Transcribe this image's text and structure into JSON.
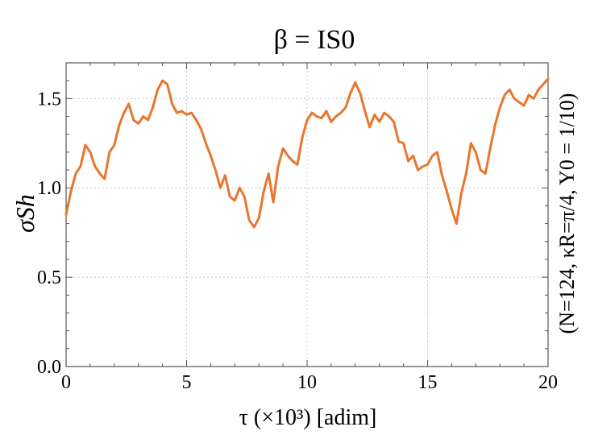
{
  "chart_data": {
    "type": "line",
    "title": "β = IS0",
    "xlabel": "τ (×10³) [adim]",
    "ylabel": "σSh",
    "side_note": "(N=124, κR=π/4, Υ0 = 1/10)",
    "xlim": [
      0,
      20
    ],
    "ylim": [
      0,
      1.7
    ],
    "x_ticks": [
      0,
      5,
      10,
      15,
      20
    ],
    "x_tick_labels": [
      "0",
      "5",
      "10",
      "15",
      "20"
    ],
    "y_ticks": [
      0.0,
      0.5,
      1.0,
      1.5
    ],
    "y_tick_labels": [
      "0.0",
      "0.5",
      "1.0",
      "1.5"
    ],
    "grid": true,
    "line_color": "#e8762d",
    "series": [
      {
        "x": [
          0.0,
          0.2,
          0.4,
          0.6,
          0.8,
          1.0,
          1.2,
          1.4,
          1.6,
          1.8,
          2.0,
          2.2,
          2.4,
          2.6,
          2.8,
          3.0,
          3.2,
          3.4,
          3.6,
          3.8,
          4.0,
          4.2,
          4.4,
          4.6,
          4.8,
          5.0,
          5.2,
          5.4,
          5.6,
          5.8,
          6.0,
          6.2,
          6.4,
          6.6,
          6.8,
          7.0,
          7.2,
          7.4,
          7.6,
          7.8,
          8.0,
          8.2,
          8.4,
          8.6,
          8.8,
          9.0,
          9.2,
          9.4,
          9.6,
          9.8,
          10.0,
          10.2,
          10.4,
          10.6,
          10.8,
          11.0,
          11.2,
          11.4,
          11.6,
          11.8,
          12.0,
          12.2,
          12.4,
          12.6,
          12.8,
          13.0,
          13.2,
          13.4,
          13.6,
          13.8,
          14.0,
          14.2,
          14.4,
          14.6,
          14.8,
          15.0,
          15.2,
          15.4,
          15.6,
          15.8,
          16.0,
          16.2,
          16.4,
          16.6,
          16.8,
          17.0,
          17.2,
          17.4,
          17.6,
          17.8,
          18.0,
          18.2,
          18.4,
          18.6,
          18.8,
          19.0,
          19.2,
          19.4,
          19.6,
          19.8,
          20.0
        ],
        "y": [
          0.85,
          0.98,
          1.08,
          1.12,
          1.24,
          1.2,
          1.12,
          1.08,
          1.05,
          1.2,
          1.24,
          1.35,
          1.42,
          1.47,
          1.38,
          1.36,
          1.4,
          1.38,
          1.45,
          1.55,
          1.6,
          1.58,
          1.47,
          1.42,
          1.43,
          1.41,
          1.42,
          1.38,
          1.33,
          1.25,
          1.18,
          1.1,
          1.0,
          1.07,
          0.95,
          0.93,
          1.0,
          0.95,
          0.82,
          0.78,
          0.83,
          0.98,
          1.08,
          0.92,
          1.12,
          1.22,
          1.18,
          1.15,
          1.13,
          1.28,
          1.38,
          1.42,
          1.4,
          1.39,
          1.43,
          1.37,
          1.4,
          1.42,
          1.45,
          1.53,
          1.59,
          1.53,
          1.43,
          1.34,
          1.41,
          1.37,
          1.42,
          1.4,
          1.37,
          1.26,
          1.25,
          1.15,
          1.18,
          1.1,
          1.12,
          1.13,
          1.18,
          1.2,
          1.07,
          0.98,
          0.88,
          0.8,
          0.97,
          1.08,
          1.25,
          1.2,
          1.1,
          1.08,
          1.22,
          1.35,
          1.45,
          1.52,
          1.55,
          1.5,
          1.48,
          1.46,
          1.52,
          1.5,
          1.55,
          1.58,
          1.61
        ]
      }
    ]
  }
}
